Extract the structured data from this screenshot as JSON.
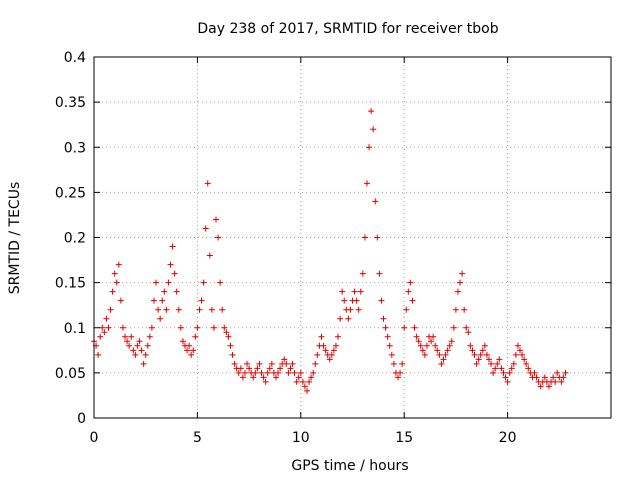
{
  "chart_data": {
    "type": "scatter",
    "title": "Day 238 of 2017, SRMTID for receiver tbob",
    "xlabel": "GPS time / hours",
    "ylabel": "SRMTID / TECUs",
    "xlim": [
      0,
      25
    ],
    "ylim": [
      0,
      0.4
    ],
    "xticks": [
      0,
      5,
      10,
      15,
      20
    ],
    "xtick_labels": [
      "0",
      "5",
      "10",
      "15",
      "20"
    ],
    "yticks": [
      0,
      0.05,
      0.1,
      0.15,
      0.2,
      0.25,
      0.3,
      0.35,
      0.4
    ],
    "ytick_labels": [
      "0",
      "0.05",
      "0.1",
      "0.15",
      "0.2",
      "0.25",
      "0.3",
      "0.35",
      "0.4"
    ],
    "grid": true,
    "marker": "plus",
    "color": "#e00000",
    "series": [
      {
        "name": "SRMTID",
        "x": [
          0.0,
          0.1,
          0.2,
          0.3,
          0.4,
          0.5,
          0.6,
          0.7,
          0.8,
          0.9,
          1.0,
          1.1,
          1.2,
          1.3,
          1.4,
          1.5,
          1.6,
          1.7,
          1.8,
          1.9,
          2.0,
          2.1,
          2.2,
          2.3,
          2.4,
          2.5,
          2.6,
          2.7,
          2.8,
          2.9,
          3.0,
          3.1,
          3.2,
          3.3,
          3.4,
          3.5,
          3.6,
          3.7,
          3.8,
          3.9,
          4.0,
          4.1,
          4.2,
          4.3,
          4.4,
          4.5,
          4.6,
          4.7,
          4.8,
          4.9,
          5.0,
          5.1,
          5.2,
          5.3,
          5.4,
          5.5,
          5.6,
          5.7,
          5.8,
          5.9,
          6.0,
          6.1,
          6.2,
          6.3,
          6.4,
          6.5,
          6.6,
          6.7,
          6.8,
          6.9,
          7.0,
          7.1,
          7.2,
          7.3,
          7.4,
          7.5,
          7.6,
          7.7,
          7.8,
          7.9,
          8.0,
          8.1,
          8.2,
          8.3,
          8.4,
          8.5,
          8.6,
          8.7,
          8.8,
          8.9,
          9.0,
          9.1,
          9.2,
          9.3,
          9.4,
          9.5,
          9.6,
          9.7,
          9.8,
          9.9,
          10.0,
          10.1,
          10.2,
          10.3,
          10.4,
          10.5,
          10.6,
          10.7,
          10.8,
          10.9,
          11.0,
          11.1,
          11.2,
          11.3,
          11.4,
          11.5,
          11.6,
          11.7,
          11.8,
          11.9,
          12.0,
          12.1,
          12.2,
          12.3,
          12.4,
          12.5,
          12.6,
          12.7,
          12.8,
          12.9,
          13.0,
          13.1,
          13.2,
          13.3,
          13.4,
          13.5,
          13.6,
          13.7,
          13.8,
          13.9,
          14.0,
          14.1,
          14.2,
          14.3,
          14.4,
          14.5,
          14.6,
          14.7,
          14.8,
          14.9,
          15.0,
          15.1,
          15.2,
          15.3,
          15.4,
          15.5,
          15.6,
          15.7,
          15.8,
          15.9,
          16.0,
          16.1,
          16.2,
          16.3,
          16.4,
          16.5,
          16.6,
          16.7,
          16.8,
          16.9,
          17.0,
          17.1,
          17.2,
          17.3,
          17.4,
          17.5,
          17.6,
          17.7,
          17.8,
          17.9,
          18.0,
          18.1,
          18.2,
          18.3,
          18.4,
          18.5,
          18.6,
          18.7,
          18.8,
          18.9,
          19.0,
          19.1,
          19.2,
          19.3,
          19.4,
          19.5,
          19.6,
          19.7,
          19.8,
          19.9,
          20.0,
          20.1,
          20.2,
          20.3,
          20.4,
          20.5,
          20.6,
          20.7,
          20.8,
          20.9,
          21.0,
          21.1,
          21.2,
          21.3,
          21.4,
          21.5,
          21.6,
          21.7,
          21.8,
          21.9,
          22.0,
          22.1,
          22.2,
          22.3,
          22.4,
          22.5,
          22.6,
          22.7,
          22.8
        ],
        "y": [
          0.085,
          0.08,
          0.07,
          0.09,
          0.1,
          0.095,
          0.11,
          0.1,
          0.12,
          0.14,
          0.16,
          0.15,
          0.17,
          0.13,
          0.1,
          0.09,
          0.085,
          0.08,
          0.09,
          0.075,
          0.07,
          0.08,
          0.085,
          0.075,
          0.06,
          0.07,
          0.08,
          0.09,
          0.1,
          0.13,
          0.15,
          0.12,
          0.11,
          0.13,
          0.14,
          0.12,
          0.15,
          0.17,
          0.19,
          0.16,
          0.14,
          0.12,
          0.1,
          0.085,
          0.08,
          0.075,
          0.08,
          0.07,
          0.075,
          0.09,
          0.1,
          0.12,
          0.13,
          0.15,
          0.21,
          0.26,
          0.18,
          0.12,
          0.1,
          0.22,
          0.2,
          0.15,
          0.12,
          0.1,
          0.095,
          0.09,
          0.08,
          0.07,
          0.06,
          0.055,
          0.05,
          0.055,
          0.045,
          0.05,
          0.06,
          0.055,
          0.05,
          0.045,
          0.05,
          0.055,
          0.06,
          0.05,
          0.045,
          0.04,
          0.05,
          0.055,
          0.06,
          0.05,
          0.045,
          0.05,
          0.055,
          0.06,
          0.065,
          0.06,
          0.05,
          0.055,
          0.06,
          0.05,
          0.04,
          0.045,
          0.05,
          0.04,
          0.035,
          0.03,
          0.04,
          0.045,
          0.05,
          0.06,
          0.07,
          0.08,
          0.09,
          0.08,
          0.075,
          0.07,
          0.065,
          0.07,
          0.075,
          0.08,
          0.09,
          0.11,
          0.14,
          0.13,
          0.12,
          0.11,
          0.12,
          0.13,
          0.14,
          0.13,
          0.12,
          0.14,
          0.16,
          0.2,
          0.26,
          0.3,
          0.34,
          0.32,
          0.24,
          0.2,
          0.16,
          0.13,
          0.11,
          0.1,
          0.09,
          0.08,
          0.07,
          0.06,
          0.05,
          0.045,
          0.05,
          0.06,
          0.1,
          0.12,
          0.14,
          0.15,
          0.13,
          0.1,
          0.09,
          0.085,
          0.08,
          0.075,
          0.07,
          0.08,
          0.09,
          0.085,
          0.09,
          0.08,
          0.075,
          0.07,
          0.06,
          0.065,
          0.07,
          0.075,
          0.08,
          0.085,
          0.1,
          0.12,
          0.14,
          0.15,
          0.16,
          0.12,
          0.1,
          0.095,
          0.08,
          0.075,
          0.07,
          0.06,
          0.065,
          0.07,
          0.075,
          0.08,
          0.07,
          0.065,
          0.06,
          0.05,
          0.055,
          0.06,
          0.065,
          0.055,
          0.05,
          0.045,
          0.04,
          0.05,
          0.055,
          0.06,
          0.07,
          0.08,
          0.075,
          0.07,
          0.065,
          0.06,
          0.055,
          0.05,
          0.045,
          0.05,
          0.045,
          0.04,
          0.035,
          0.04,
          0.045,
          0.04,
          0.035,
          0.04,
          0.045,
          0.04,
          0.05,
          0.045,
          0.04,
          0.045,
          0.05
        ]
      }
    ]
  }
}
